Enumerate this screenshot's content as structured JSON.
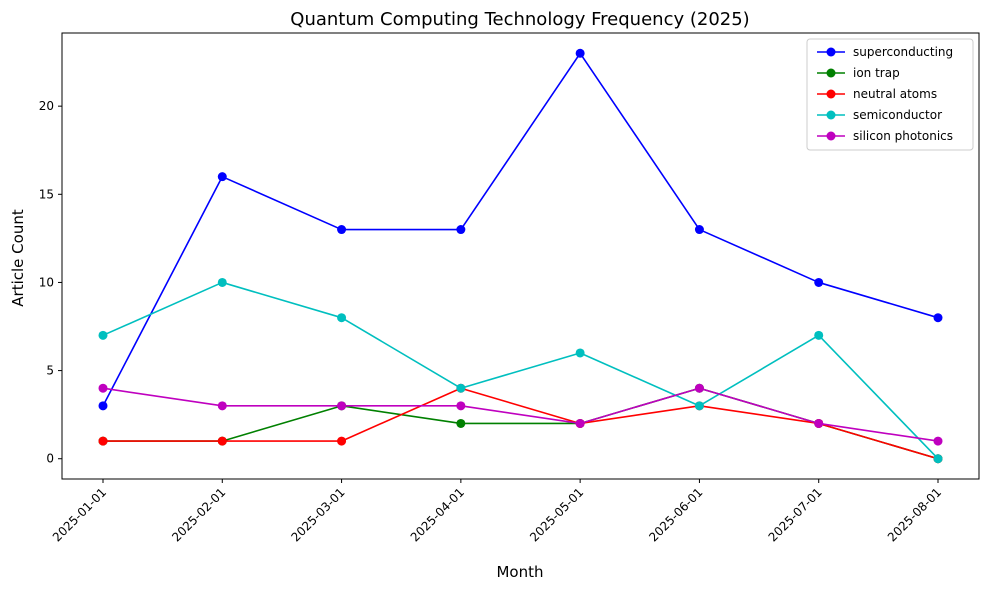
{
  "chart_data": {
    "type": "line",
    "title": "Quantum Computing Technology Frequency (2025)",
    "xlabel": "Month",
    "ylabel": "Article Count",
    "categories": [
      "2025-01-01",
      "2025-02-01",
      "2025-03-01",
      "2025-04-01",
      "2025-05-01",
      "2025-06-01",
      "2025-07-01",
      "2025-08-01"
    ],
    "ylim": [
      -1.15,
      24.15
    ],
    "yticks": [
      0,
      5,
      10,
      15,
      20
    ],
    "legend_position": "top-right",
    "grid": false,
    "series": [
      {
        "name": "superconducting",
        "color": "#0000ff",
        "values": [
          3,
          16,
          13,
          13,
          23,
          13,
          10,
          8
        ]
      },
      {
        "name": "ion trap",
        "color": "#008000",
        "values": [
          1,
          1,
          3,
          2,
          2,
          4,
          2,
          0
        ]
      },
      {
        "name": "neutral atoms",
        "color": "#ff0000",
        "values": [
          1,
          1,
          1,
          4,
          2,
          3,
          2,
          0
        ]
      },
      {
        "name": "semiconductor",
        "color": "#00bfbf",
        "values": [
          7,
          10,
          8,
          4,
          6,
          3,
          7,
          0
        ]
      },
      {
        "name": "silicon photonics",
        "color": "#bf00bf",
        "values": [
          4,
          3,
          3,
          3,
          2,
          4,
          2,
          1
        ]
      }
    ]
  }
}
